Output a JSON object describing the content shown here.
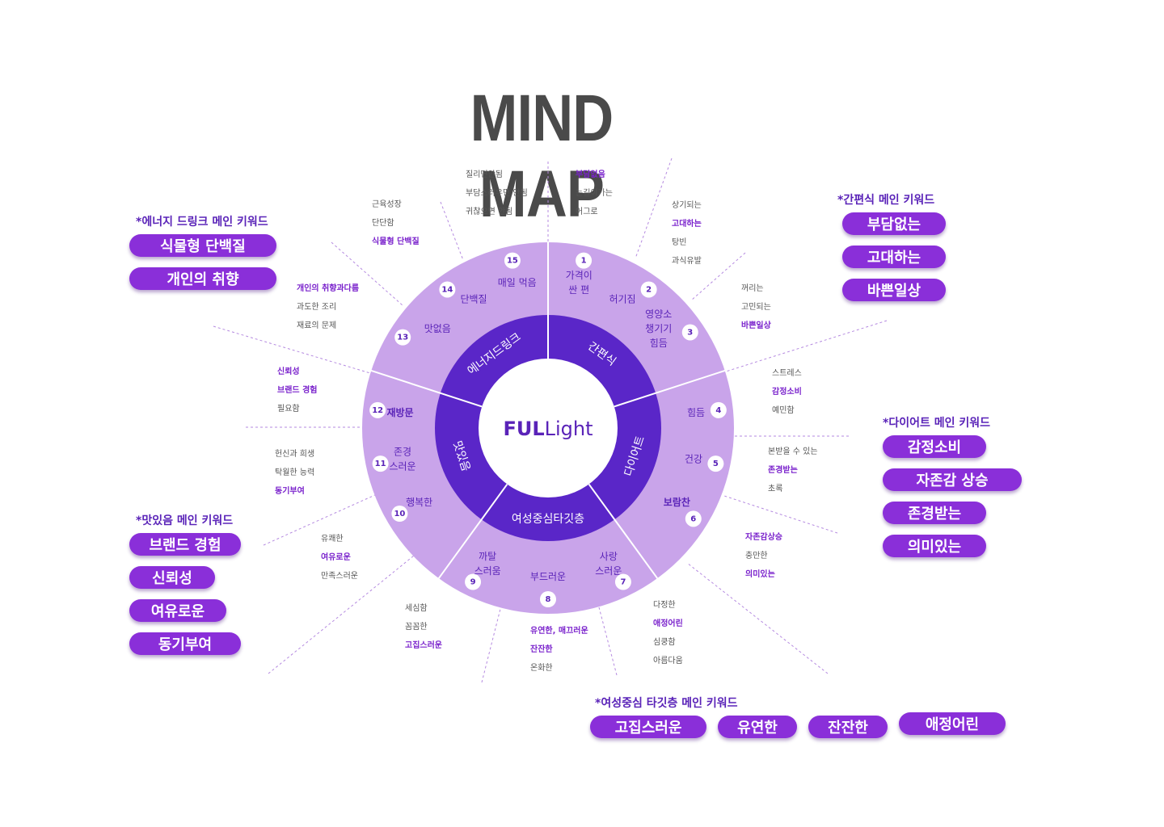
{
  "title": "MIND MAP",
  "center": {
    "brand_bold": "FUL",
    "brand_light": "Light"
  },
  "categories": [
    "에너지드링크",
    "간편식",
    "다이어트",
    "여성중심타깃층",
    "맛있음"
  ],
  "segments": [
    {
      "num": "1",
      "label": [
        "가격이",
        "싼 편"
      ],
      "bold": false
    },
    {
      "num": "2",
      "label": [
        "허기짐"
      ],
      "bold": false
    },
    {
      "num": "3",
      "label": [
        "영양소",
        "챙기기",
        "힘듬"
      ],
      "bold": false
    },
    {
      "num": "4",
      "label": [
        "힘듬"
      ],
      "bold": false
    },
    {
      "num": "5",
      "label": [
        "건강"
      ],
      "bold": false
    },
    {
      "num": "6",
      "label": [
        "보람찬"
      ],
      "bold": true
    },
    {
      "num": "7",
      "label": [
        "사랑",
        "스러운"
      ],
      "bold": false
    },
    {
      "num": "8",
      "label": [
        "부드러운"
      ],
      "bold": false
    },
    {
      "num": "9",
      "label": [
        "까탈",
        "스러움"
      ],
      "bold": false
    },
    {
      "num": "10",
      "label": [
        "행복한"
      ],
      "bold": false
    },
    {
      "num": "11",
      "label": [
        "존경",
        "스러운"
      ],
      "bold": false
    },
    {
      "num": "12",
      "label": [
        "재방문"
      ],
      "bold": true
    },
    {
      "num": "13",
      "label": [
        "맛없음"
      ],
      "bold": false
    },
    {
      "num": "14",
      "label": [
        "단백질"
      ],
      "bold": false
    },
    {
      "num": "15",
      "label": [
        "매일 먹음"
      ],
      "bold": false
    }
  ],
  "outer_lists": [
    {
      "items": [
        {
          "t": "부담없음",
          "hl": true
        },
        {
          "t": "눈길이가는",
          "hl": false
        },
        {
          "t": "어그로",
          "hl": false
        }
      ]
    },
    {
      "items": [
        {
          "t": "상기되는",
          "hl": false
        },
        {
          "t": "고대하는",
          "hl": true
        },
        {
          "t": "탕빈",
          "hl": false
        },
        {
          "t": "과식유발",
          "hl": false
        }
      ]
    },
    {
      "items": [
        {
          "t": "꺼리는",
          "hl": false
        },
        {
          "t": "고민되는",
          "hl": false
        },
        {
          "t": "바쁜일상",
          "hl": true
        }
      ]
    },
    {
      "items": [
        {
          "t": "스트레스",
          "hl": false
        },
        {
          "t": "감정소비",
          "hl": true
        },
        {
          "t": "예민함",
          "hl": false
        }
      ]
    },
    {
      "items": [
        {
          "t": "본받을 수 있는",
          "hl": false
        },
        {
          "t": "존경받는",
          "hl": true
        },
        {
          "t": "초록",
          "hl": false
        }
      ]
    },
    {
      "items": [
        {
          "t": "자존감상승",
          "hl": true
        },
        {
          "t": "충만한",
          "hl": false
        },
        {
          "t": "의미있는",
          "hl": true
        }
      ]
    },
    {
      "items": [
        {
          "t": "다정한",
          "hl": false
        },
        {
          "t": "애정어린",
          "hl": true
        },
        {
          "t": "심쿵함",
          "hl": false
        },
        {
          "t": "아름다움",
          "hl": false
        }
      ]
    },
    {
      "items": [
        {
          "t": "유연한, 매끄러운",
          "hl": true
        },
        {
          "t": "잔잔한",
          "hl": true
        },
        {
          "t": "온화한",
          "hl": false
        }
      ]
    },
    {
      "items": [
        {
          "t": "세심함",
          "hl": false
        },
        {
          "t": "꼼꼼한",
          "hl": false
        },
        {
          "t": "고집스러운",
          "hl": true
        }
      ]
    },
    {
      "items": [
        {
          "t": "유쾌한",
          "hl": false
        },
        {
          "t": "여유로운",
          "hl": true
        },
        {
          "t": "만족스러운",
          "hl": false
        }
      ]
    },
    {
      "items": [
        {
          "t": "헌신과 희생",
          "hl": false
        },
        {
          "t": "탁월한 능력",
          "hl": false
        },
        {
          "t": "동기부여",
          "hl": true
        }
      ]
    },
    {
      "items": [
        {
          "t": "신뢰성",
          "hl": true
        },
        {
          "t": "브랜드 경험",
          "hl": true
        },
        {
          "t": "필요함",
          "hl": false
        }
      ]
    },
    {
      "items": [
        {
          "t": "개인의 취향과다름",
          "hl": true
        },
        {
          "t": "과도한 조리",
          "hl": false
        },
        {
          "t": "재료의 문제",
          "hl": false
        }
      ]
    },
    {
      "items": [
        {
          "t": "근육성장",
          "hl": false
        },
        {
          "t": "단단함",
          "hl": false
        },
        {
          "t": "식물형 단백질",
          "hl": true
        }
      ]
    },
    {
      "items": [
        {
          "t": "질리면안됨",
          "hl": false
        },
        {
          "t": "부담스러우면 안됨",
          "hl": false
        },
        {
          "t": "귀찮으면 안됨",
          "hl": false
        }
      ]
    }
  ],
  "keywords": {
    "energy": {
      "title": "*에너지 드링크  메인 키워드",
      "pills": [
        "식물형 단백질",
        "개인의 취향"
      ]
    },
    "simple": {
      "title": "*간편식  메인 키워드",
      "pills": [
        "부담없는",
        "고대하는",
        "바쁜일상"
      ]
    },
    "diet": {
      "title": "*다이어트  메인 키워드",
      "pills": [
        "감정소비",
        "자존감 상승",
        "존경받는",
        "의미있는"
      ]
    },
    "taste": {
      "title": "*맛있음  메인 키워드",
      "pills": [
        "브랜드 경험",
        "신뢰성",
        "여유로운",
        "동기부여"
      ]
    },
    "women": {
      "title": "*여성중심  타깃층 메인 키워드",
      "pills": [
        "고집스러운",
        "유연한",
        "잔잔한",
        "애정어린"
      ]
    }
  },
  "colors": {
    "outer_ring": "#c9a4ea",
    "inner_ring": "#5a26c8",
    "accent": "#5a23b8",
    "pill": "#8a2fd9"
  }
}
